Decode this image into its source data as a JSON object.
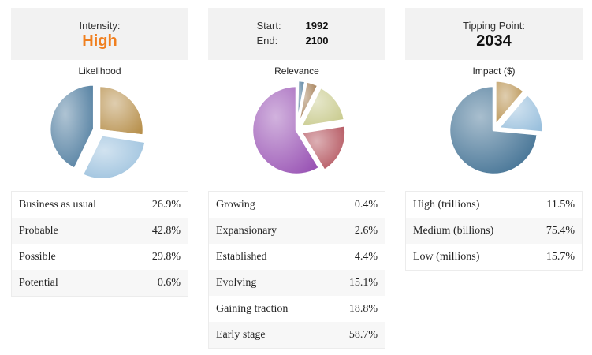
{
  "intensity": {
    "label": "Intensity:",
    "value": "High"
  },
  "period": {
    "start_label": "Start:",
    "start": "1992",
    "end_label": "End:",
    "end": "2100"
  },
  "tipping": {
    "label": "Tipping Point:",
    "value": "2034"
  },
  "chart_data": [
    {
      "type": "pie",
      "title": "Likelihood",
      "categories": [
        "Business as usual",
        "Probable",
        "Possible",
        "Potential"
      ],
      "values": [
        26.9,
        42.8,
        29.8,
        0.6
      ],
      "colors": [
        "#b8914e",
        "#4d7b9e",
        "#9ac0dd",
        "#cfe1ee"
      ],
      "order": [
        0,
        3,
        2,
        1
      ],
      "exploded": 0
    },
    {
      "type": "pie",
      "title": "Relevance",
      "categories": [
        "Growing",
        "Expansionary",
        "Established",
        "Evolving",
        "Gaining traction",
        "Early stage"
      ],
      "values": [
        0.4,
        2.6,
        4.4,
        15.1,
        18.8,
        58.7
      ],
      "colors": [
        "#7aa6c8",
        "#3f6f92",
        "#a0784d",
        "#c8ca8c",
        "#b2505a",
        "#9a55b5"
      ],
      "order": [
        0,
        1,
        2,
        3,
        4,
        5
      ],
      "exploded": 5
    },
    {
      "type": "pie",
      "title": "Impact ($)",
      "categories": [
        "High (trillions)",
        "Medium (billions)",
        "Low (millions)"
      ],
      "values": [
        11.5,
        75.4,
        15.7
      ],
      "colors": [
        "#b8914e",
        "#3f6f92",
        "#9ac0dd"
      ],
      "order": [
        0,
        2,
        1
      ],
      "exploded": 1
    }
  ]
}
